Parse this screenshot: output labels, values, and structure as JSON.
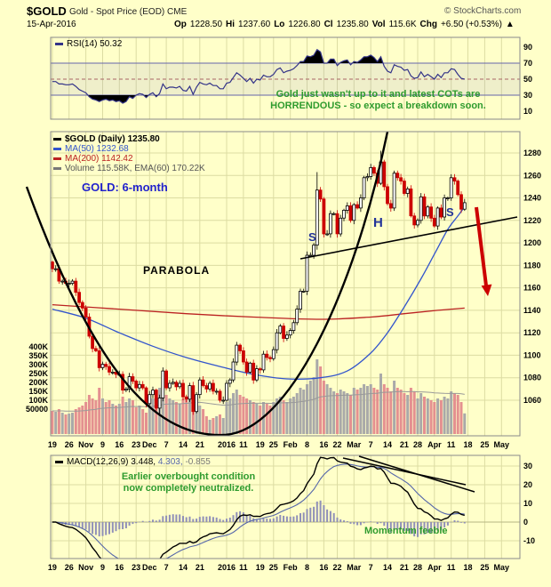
{
  "header": {
    "symbol": "$GOLD",
    "description": "Gold - Spot Price (EOD) CME",
    "copyright": "© StockCharts.com",
    "date": "15-Apr-2016",
    "quote": {
      "op_label": "Op",
      "op": "1228.50",
      "hi_label": "Hi",
      "hi": "1237.60",
      "lo_label": "Lo",
      "lo": "1226.80",
      "cl_label": "Cl",
      "cl": "1235.80",
      "vol_label": "Vol",
      "vol": "115.6K",
      "chg_label": "Chg",
      "chg": "+6.50 (+0.53%)",
      "chg_arrow": "▲"
    }
  },
  "rsi_panel": {
    "label": "RSI(14) 50.32"
  },
  "main_panel": {
    "series_label": "$GOLD (Daily) 1235.80",
    "ma50_label": "MA(50) 1232.68",
    "ma200_label": "MA(200) 1142.42",
    "volume_label": "Volume 115.58K, EMA(60) 170.22K"
  },
  "macd_panel": {
    "name": "MACD(12,26,9)",
    "value_macd": "3.448,",
    "value_signal": "4.303,",
    "value_hist": "-0.855"
  },
  "annotations": {
    "rsi_line1": "Gold just wasn't up to it and latest COTs are",
    "rsi_line2": "HORRENDOUS - so expect a breakdown soon.",
    "timeframe": "GOLD: 6-month",
    "parabola": "PARABOLA",
    "shoulder_left": "S",
    "head": "H",
    "shoulder_right": "S",
    "macd_line1": "Earlier overbought condition",
    "macd_line2": "now completely neutralized.",
    "momentum": "Momentum feeble"
  },
  "colors": {
    "background": "#ffffc9",
    "grid": "#dcdca2",
    "panel_border": "#8a8a8a",
    "up_candle": "#000000",
    "up_fill": "#ffffff",
    "down_candle": "#cc0000",
    "ma50": "#3355cc",
    "ma200": "#bb2222",
    "rsi_line": "#333388",
    "macd_line": "#000000",
    "signal_line": "#5566aa",
    "histogram": "#9090b8",
    "volume_up": "#a9a9a9",
    "volume_down": "#e49090",
    "annotation_green": "#2e9b2e",
    "annotation_blue": "#2222cc",
    "arrow": "#cc0000"
  },
  "chart_data": {
    "type": "candlestick",
    "symbol": "$GOLD",
    "timeframe": "Daily, 6-month (Oct 2015 - Apr 2016)",
    "last_close": 1235.8,
    "ma50_value": 1232.68,
    "ma200_value": 1142.42,
    "rsi_value": 50.32,
    "macd_values": [
      3.448,
      4.303,
      -0.855
    ],
    "rsi_overbought": 70,
    "rsi_oversold": 30,
    "price_axis": [
      1280,
      1260,
      1240,
      1220,
      1200,
      1180,
      1160,
      1140,
      1120,
      1100,
      1080,
      1060
    ],
    "volume_axis": [
      {
        "label": "400K",
        "value": 400
      },
      {
        "label": "350K",
        "value": 350
      },
      {
        "label": "300K",
        "value": 300
      },
      {
        "label": "250K",
        "value": 250
      },
      {
        "label": "200K",
        "value": 200
      },
      {
        "label": "150K",
        "value": 150
      },
      {
        "label": "100K",
        "value": 100
      },
      {
        "label": "50000",
        "value": 50
      }
    ],
    "rsi_axis": [
      90,
      70,
      50,
      30,
      10
    ],
    "macd_axis": [
      30,
      20,
      10,
      0,
      -10
    ],
    "x_ticks": [
      {
        "label": "19",
        "slot": 0
      },
      {
        "label": "26",
        "slot": 5
      },
      {
        "label": "Nov",
        "slot": 10
      },
      {
        "label": "9",
        "slot": 15
      },
      {
        "label": "16",
        "slot": 20
      },
      {
        "label": "23",
        "slot": 25
      },
      {
        "label": "Dec",
        "slot": 29
      },
      {
        "label": "7",
        "slot": 34
      },
      {
        "label": "14",
        "slot": 39
      },
      {
        "label": "21",
        "slot": 44
      },
      {
        "label": "2016",
        "slot": 52
      },
      {
        "label": "11",
        "slot": 57
      },
      {
        "label": "19",
        "slot": 62
      },
      {
        "label": "25",
        "slot": 66
      },
      {
        "label": "Feb",
        "slot": 71
      },
      {
        "label": "8",
        "slot": 76
      },
      {
        "label": "16",
        "slot": 81
      },
      {
        "label": "22",
        "slot": 85
      },
      {
        "label": "Mar",
        "slot": 90
      },
      {
        "label": "7",
        "slot": 95
      },
      {
        "label": "14",
        "slot": 100
      },
      {
        "label": "21",
        "slot": 105
      },
      {
        "label": "28",
        "slot": 109
      },
      {
        "label": "Apr",
        "slot": 114
      },
      {
        "label": "11",
        "slot": 119
      },
      {
        "label": "18",
        "slot": 124
      },
      {
        "label": "25",
        "slot": 129
      },
      {
        "label": "May",
        "slot": 134
      }
    ],
    "first_open": 1183,
    "closes": [
      1177,
      1177,
      1166,
      1166,
      1164,
      1164,
      1166,
      1156,
      1147,
      1142,
      1134,
      1117,
      1106,
      1104,
      1089,
      1092,
      1090,
      1085,
      1085,
      1083,
      1083,
      1069,
      1070,
      1081,
      1077,
      1071,
      1074,
      1071,
      1057,
      1065,
      1069,
      1053,
      1062,
      1086,
      1071,
      1075,
      1076,
      1072,
      1075,
      1063,
      1061,
      1073,
      1050,
      1065,
      1078,
      1073,
      1070,
      1075,
      1068,
      1068,
      1060,
      1060,
      1075,
      1078,
      1094,
      1109,
      1104,
      1094,
      1085,
      1093,
      1078,
      1088,
      1087,
      1101,
      1098,
      1097,
      1105,
      1120,
      1126,
      1115,
      1118,
      1122,
      1129,
      1141,
      1157,
      1157,
      1189,
      1189,
      1198,
      1247,
      1239,
      1208,
      1208,
      1226,
      1226,
      1208,
      1222,
      1229,
      1233,
      1220,
      1234,
      1231,
      1240,
      1258,
      1259,
      1267,
      1262,
      1253,
      1272,
      1250,
      1235,
      1231,
      1262,
      1258,
      1255,
      1244,
      1248,
      1224,
      1216,
      1220,
      1241,
      1224,
      1232,
      1222,
      1215,
      1231,
      1223,
      1240,
      1240,
      1258,
      1255,
      1243,
      1230,
      1235.8
    ],
    "volumes": [
      130,
      125,
      140,
      120,
      110,
      115,
      120,
      140,
      150,
      160,
      180,
      220,
      200,
      190,
      260,
      200,
      180,
      190,
      170,
      160,
      170,
      210,
      180,
      200,
      190,
      150,
      160,
      140,
      120,
      180,
      200,
      240,
      260,
      300,
      220,
      200,
      190,
      180,
      170,
      200,
      210,
      230,
      260,
      220,
      160,
      140,
      100,
      80,
      90,
      100,
      110,
      90,
      180,
      200,
      230,
      250,
      220,
      210,
      200,
      190,
      180,
      170,
      160,
      180,
      170,
      160,
      180,
      200,
      210,
      190,
      180,
      200,
      210,
      230,
      260,
      250,
      280,
      300,
      320,
      420,
      380,
      300,
      280,
      260,
      240,
      230,
      250,
      240,
      230,
      220,
      260,
      250,
      260,
      280,
      270,
      280,
      260,
      250,
      340,
      280,
      260,
      240,
      300,
      260,
      250,
      230,
      220,
      260,
      240,
      200,
      230,
      210,
      200,
      190,
      180,
      200,
      190,
      210,
      200,
      240,
      230,
      220,
      180,
      116
    ],
    "rsi": [
      47,
      47,
      44,
      44,
      43,
      43,
      44,
      41,
      37,
      35,
      33,
      28,
      25,
      24,
      22,
      24,
      25,
      23,
      24,
      22,
      23,
      20,
      22,
      28,
      26,
      30,
      32,
      31,
      27,
      31,
      33,
      28,
      32,
      44,
      38,
      40,
      40,
      39,
      41,
      36,
      35,
      41,
      31,
      40,
      46,
      44,
      43,
      45,
      42,
      42,
      38,
      38,
      45,
      46,
      52,
      58,
      55,
      51,
      47,
      51,
      45,
      50,
      49,
      55,
      53,
      53,
      56,
      62,
      64,
      58,
      60,
      61,
      63,
      67,
      72,
      72,
      79,
      78,
      80,
      87,
      84,
      70,
      70,
      75,
      75,
      67,
      71,
      73,
      74,
      68,
      72,
      71,
      74,
      78,
      78,
      80,
      77,
      72,
      78,
      66,
      60,
      58,
      68,
      66,
      65,
      61,
      62,
      54,
      51,
      52,
      59,
      53,
      56,
      53,
      50,
      56,
      52,
      58,
      58,
      63,
      62,
      56,
      51,
      50
    ],
    "ma50_keypoints": [
      [
        0,
        1141
      ],
      [
        10,
        1133
      ],
      [
        20,
        1120
      ],
      [
        30,
        1108
      ],
      [
        40,
        1098
      ],
      [
        50,
        1090
      ],
      [
        60,
        1083
      ],
      [
        70,
        1079
      ],
      [
        80,
        1080
      ],
      [
        88,
        1086
      ],
      [
        95,
        1102
      ],
      [
        100,
        1120
      ],
      [
        105,
        1143
      ],
      [
        110,
        1168
      ],
      [
        114,
        1190
      ],
      [
        118,
        1212
      ],
      [
        121,
        1224
      ],
      [
        123,
        1232
      ]
    ],
    "ma200_keypoints": [
      [
        0,
        1145
      ],
      [
        20,
        1141
      ],
      [
        40,
        1137
      ],
      [
        60,
        1134
      ],
      [
        80,
        1132
      ],
      [
        95,
        1134
      ],
      [
        105,
        1137
      ],
      [
        115,
        1140
      ],
      [
        123,
        1142
      ]
    ],
    "wick_overrides": {
      "32": {
        "low": 1046
      },
      "42": {
        "low": 1047
      },
      "79": {
        "high": 1263,
        "low": 1194
      },
      "98": {
        "high": 1282
      }
    }
  }
}
